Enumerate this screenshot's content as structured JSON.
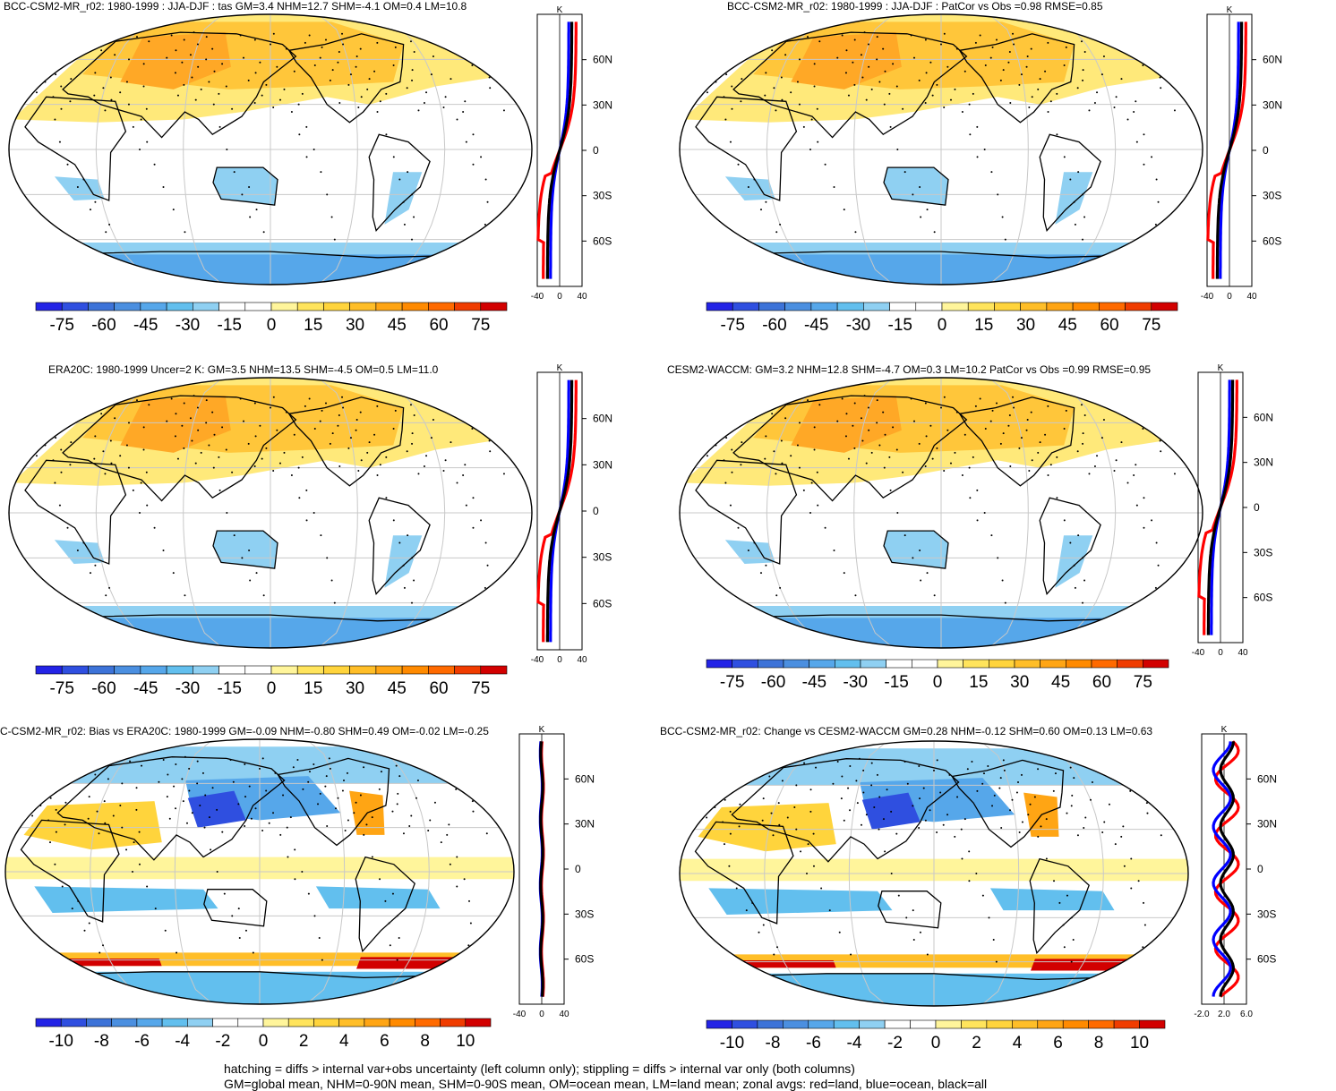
{
  "panels": [
    {
      "title": "BCC-CSM2-MR_r02: 1980-1999 : JJA-DJF : tas GM=3.4 NHM=12.7 SHM=-4.1 OM=0.4 LM=10.8",
      "kind": "model"
    },
    {
      "title": "BCC-CSM2-MR_r02: 1980-1999 : JJA-DJF : PatCor vs Obs =0.98 RMSE=0.85",
      "kind": "model"
    },
    {
      "title": "ERA20C: 1980-1999 Uncer=2 K: GM=3.5 NHM=13.5 SHM=-4.5 OM=0.5 LM=11.0",
      "kind": "model"
    },
    {
      "title": "CESM2-WACCM: GM=3.2 NHM=12.8 SHM=-4.7 OM=0.3 LM=10.2 PatCor vs Obs =0.99 RMSE=0.95",
      "kind": "model"
    },
    {
      "title": "C-CSM2-MR_r02: Bias vs ERA20C: 1980-1999 GM=-0.09 NHM=-0.80 SHM=0.49 OM=-0.02 LM=-0.25",
      "kind": "diff"
    },
    {
      "title": "BCC-CSM2-MR_r02: Change vs CESM2-WACCM GM=0.28 NHM=-0.12 SHM=0.60 OM=0.13 LM=0.63",
      "kind": "diff"
    }
  ],
  "chart_data": {
    "type": "heatmap",
    "colorbars": {
      "main": {
        "labels": [
          "-75",
          "-60",
          "-45",
          "-30",
          "-15",
          "0",
          "15",
          "30",
          "45",
          "60",
          "75"
        ],
        "colors": [
          "#2323e6",
          "#2f4fe0",
          "#3d73d8",
          "#4b8fe0",
          "#56a7ea",
          "#62bfee",
          "#8fd0f2",
          "#ffffff",
          "#ffffff",
          "#fff59b",
          "#ffe45c",
          "#ffd43c",
          "#ffbe28",
          "#ffa514",
          "#ff8a00",
          "#ff6a00",
          "#f03c00",
          "#d20000"
        ]
      },
      "diff": {
        "labels": [
          "-10",
          "-8",
          "-6",
          "-4",
          "-2",
          "0",
          "2",
          "4",
          "6",
          "8",
          "10"
        ],
        "colors": [
          "#2323e6",
          "#2f4fe0",
          "#3d73d8",
          "#4b8fe0",
          "#56a7ea",
          "#62bfee",
          "#8fd0f2",
          "#ffffff",
          "#ffffff",
          "#fff59b",
          "#ffe45c",
          "#ffd43c",
          "#ffbe28",
          "#ffa514",
          "#ff8a00",
          "#ff6a00",
          "#f03c00",
          "#d20000"
        ]
      }
    },
    "zonal_axis": {
      "unit": "K",
      "lat_labels": [
        "60N",
        "30N",
        "0",
        "30S",
        "60S"
      ],
      "lat_values": [
        60,
        30,
        0,
        -30,
        -60
      ],
      "x_labels_main": [
        "-40",
        "0",
        "40"
      ],
      "x_labels_change": [
        "-2.0",
        "2.0",
        "6.0"
      ]
    },
    "series_colors": {
      "land": "#ff0000",
      "ocean": "#0000ff",
      "all": "#000000"
    }
  },
  "footer": {
    "line1": "hatching = diffs > internal var+obs uncertainty (left column only); stippling = diffs > internal var only (both columns)",
    "line2": "GM=global mean, NHM=0-90N mean, SHM=0-90S mean, OM=ocean mean, LM=land mean; zonal avgs: red=land, blue=ocean, black=all"
  }
}
